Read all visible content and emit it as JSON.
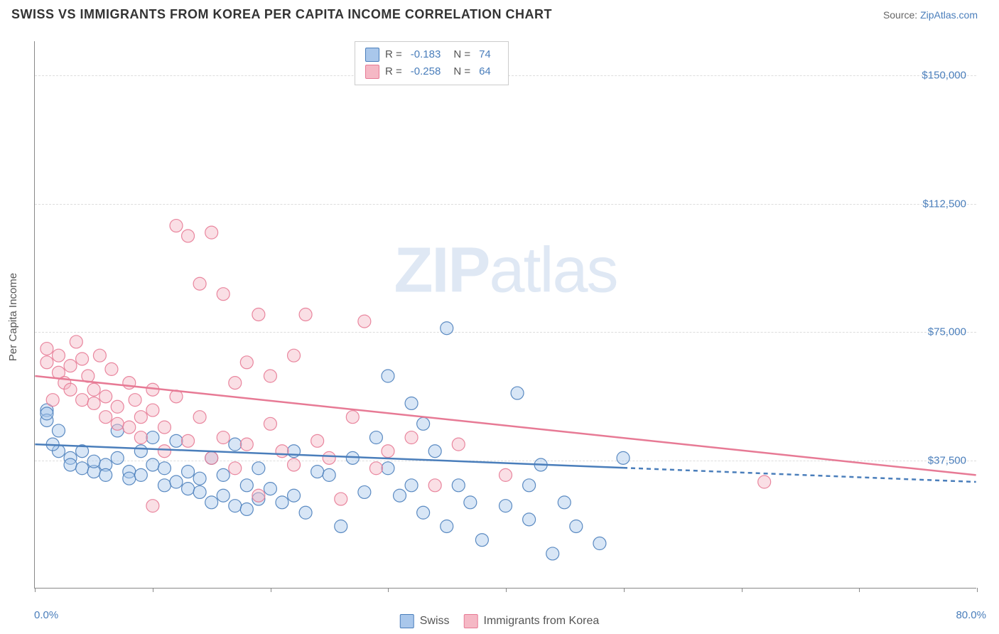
{
  "title": "SWISS VS IMMIGRANTS FROM KOREA PER CAPITA INCOME CORRELATION CHART",
  "source_prefix": "Source: ",
  "source_link": "ZipAtlas.com",
  "watermark_1": "ZIP",
  "watermark_2": "atlas",
  "chart": {
    "type": "scatter",
    "y_axis_label": "Per Capita Income",
    "x_min": 0.0,
    "x_max": 80.0,
    "x_min_label": "0.0%",
    "x_max_label": "80.0%",
    "x_tick_count": 8,
    "y_min": 0,
    "y_max": 160000,
    "y_ticks": [
      {
        "v": 37500,
        "label": "$37,500"
      },
      {
        "v": 75000,
        "label": "$75,000"
      },
      {
        "v": 112500,
        "label": "$112,500"
      },
      {
        "v": 150000,
        "label": "$150,000"
      }
    ],
    "background_color": "#ffffff",
    "grid_color": "#dddddd",
    "marker_radius": 9,
    "marker_opacity": 0.45,
    "marker_stroke_opacity": 0.9,
    "trend_line_width": 2.5,
    "series": [
      {
        "id": "swiss",
        "label": "Swiss",
        "color_fill": "#a9c7eb",
        "color_stroke": "#4a7ebb",
        "r_value": "-0.183",
        "n_value": "74",
        "trend": {
          "x1": 0,
          "y1": 42000,
          "x2": 80,
          "y2": 31000,
          "solid_until_x": 50
        },
        "points": [
          [
            1,
            52000
          ],
          [
            1,
            49000
          ],
          [
            1,
            51000
          ],
          [
            2,
            46000
          ],
          [
            2,
            40000
          ],
          [
            1.5,
            42000
          ],
          [
            3,
            38000
          ],
          [
            3,
            36000
          ],
          [
            4,
            40000
          ],
          [
            4,
            35000
          ],
          [
            5,
            34000
          ],
          [
            5,
            37000
          ],
          [
            6,
            36000
          ],
          [
            6,
            33000
          ],
          [
            7,
            38000
          ],
          [
            7,
            46000
          ],
          [
            8,
            34000
          ],
          [
            8,
            32000
          ],
          [
            9,
            40000
          ],
          [
            9,
            33000
          ],
          [
            10,
            44000
          ],
          [
            10,
            36000
          ],
          [
            11,
            35000
          ],
          [
            11,
            30000
          ],
          [
            12,
            43000
          ],
          [
            12,
            31000
          ],
          [
            13,
            29000
          ],
          [
            13,
            34000
          ],
          [
            14,
            32000
          ],
          [
            14,
            28000
          ],
          [
            15,
            25000
          ],
          [
            15,
            38000
          ],
          [
            16,
            27000
          ],
          [
            16,
            33000
          ],
          [
            17,
            24000
          ],
          [
            17,
            42000
          ],
          [
            18,
            23000
          ],
          [
            18,
            30000
          ],
          [
            19,
            35000
          ],
          [
            19,
            26000
          ],
          [
            20,
            29000
          ],
          [
            21,
            25000
          ],
          [
            22,
            40000
          ],
          [
            22,
            27000
          ],
          [
            23,
            22000
          ],
          [
            24,
            34000
          ],
          [
            25,
            33000
          ],
          [
            26,
            18000
          ],
          [
            27,
            38000
          ],
          [
            28,
            28000
          ],
          [
            29,
            44000
          ],
          [
            30,
            62000
          ],
          [
            30,
            35000
          ],
          [
            31,
            27000
          ],
          [
            32,
            54000
          ],
          [
            32,
            30000
          ],
          [
            33,
            48000
          ],
          [
            33,
            22000
          ],
          [
            34,
            40000
          ],
          [
            35,
            18000
          ],
          [
            35,
            76000
          ],
          [
            36,
            30000
          ],
          [
            37,
            25000
          ],
          [
            38,
            14000
          ],
          [
            40,
            24000
          ],
          [
            41,
            57000
          ],
          [
            42,
            20000
          ],
          [
            42,
            30000
          ],
          [
            43,
            36000
          ],
          [
            44,
            10000
          ],
          [
            45,
            25000
          ],
          [
            46,
            18000
          ],
          [
            48,
            13000
          ],
          [
            50,
            38000
          ]
        ]
      },
      {
        "id": "korea",
        "label": "Immigrants from Korea",
        "color_fill": "#f5b8c5",
        "color_stroke": "#e77a95",
        "r_value": "-0.258",
        "n_value": "64",
        "trend": {
          "x1": 0,
          "y1": 62000,
          "x2": 80,
          "y2": 33000,
          "solid_until_x": 80
        },
        "points": [
          [
            1,
            70000
          ],
          [
            1,
            66000
          ],
          [
            2,
            68000
          ],
          [
            2,
            63000
          ],
          [
            1.5,
            55000
          ],
          [
            2.5,
            60000
          ],
          [
            3,
            65000
          ],
          [
            3,
            58000
          ],
          [
            3.5,
            72000
          ],
          [
            4,
            67000
          ],
          [
            4,
            55000
          ],
          [
            4.5,
            62000
          ],
          [
            5,
            58000
          ],
          [
            5,
            54000
          ],
          [
            5.5,
            68000
          ],
          [
            6,
            56000
          ],
          [
            6,
            50000
          ],
          [
            6.5,
            64000
          ],
          [
            7,
            53000
          ],
          [
            7,
            48000
          ],
          [
            8,
            60000
          ],
          [
            8,
            47000
          ],
          [
            8.5,
            55000
          ],
          [
            9,
            50000
          ],
          [
            9,
            44000
          ],
          [
            10,
            52000
          ],
          [
            10,
            58000
          ],
          [
            11,
            47000
          ],
          [
            11,
            40000
          ],
          [
            12,
            106000
          ],
          [
            12,
            56000
          ],
          [
            13,
            103000
          ],
          [
            13,
            43000
          ],
          [
            14,
            89000
          ],
          [
            14,
            50000
          ],
          [
            15,
            104000
          ],
          [
            15,
            38000
          ],
          [
            16,
            86000
          ],
          [
            16,
            44000
          ],
          [
            17,
            60000
          ],
          [
            17,
            35000
          ],
          [
            18,
            66000
          ],
          [
            18,
            42000
          ],
          [
            19,
            80000
          ],
          [
            19,
            27000
          ],
          [
            20,
            62000
          ],
          [
            20,
            48000
          ],
          [
            21,
            40000
          ],
          [
            22,
            68000
          ],
          [
            22,
            36000
          ],
          [
            23,
            80000
          ],
          [
            24,
            43000
          ],
          [
            25,
            38000
          ],
          [
            26,
            26000
          ],
          [
            27,
            50000
          ],
          [
            28,
            78000
          ],
          [
            29,
            35000
          ],
          [
            30,
            40000
          ],
          [
            32,
            44000
          ],
          [
            34,
            30000
          ],
          [
            36,
            42000
          ],
          [
            40,
            33000
          ],
          [
            62,
            31000
          ],
          [
            10,
            24000
          ]
        ]
      }
    ]
  },
  "legend_r_label": "R = ",
  "legend_n_label": "N = "
}
